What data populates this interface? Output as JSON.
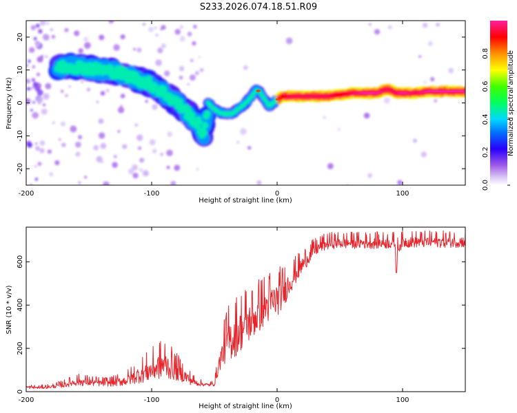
{
  "figure_title": "S233.2026.074.18.51.R09",
  "colors": {
    "snr_line": "#e8232a",
    "background": "#ffffff",
    "axis": "#000000"
  },
  "chart_data": [
    {
      "type": "heatmap",
      "title": "S233.2026.074.18.51.R09",
      "xlabel": "Height of straight line (km)",
      "ylabel": "Frequency (Hz)",
      "xlim": [
        -200,
        150
      ],
      "ylim": [
        -25,
        25
      ],
      "x_ticks": [
        -200,
        -100,
        0,
        100
      ],
      "y_ticks": [
        -20,
        -10,
        0,
        10,
        20
      ],
      "colorbar": {
        "label": "Normalized spectral amplitude",
        "range": [
          0,
          1
        ],
        "ticks": [
          "0.0",
          "0.2",
          "0.4",
          "0.6",
          "0.8"
        ],
        "colormap": [
          "#ffffff",
          "#c7a9f2",
          "#8a2be2",
          "#2200ff",
          "#00d0ff",
          "#00ff40",
          "#ffff00",
          "#ff8800",
          "#ff0000",
          "#ff2090"
        ]
      },
      "ridge": {
        "x": [
          -175,
          -160,
          -150,
          -140,
          -130,
          -120,
          -110,
          -100,
          -90,
          -80,
          -70,
          -62,
          -58,
          -55,
          -50,
          -45,
          -40,
          -35,
          -30,
          -25,
          -20,
          -17,
          -14,
          -10,
          -6,
          -2,
          0,
          5,
          10,
          20,
          30,
          40,
          50,
          60,
          70,
          80,
          85,
          90,
          95,
          100,
          110,
          120,
          130,
          140,
          150
        ],
        "freq": [
          11,
          11,
          10.5,
          10,
          9.5,
          8.5,
          7,
          5.5,
          3,
          0,
          -3.5,
          -7,
          -10,
          0,
          -2,
          -3,
          -3.5,
          -3,
          -1.5,
          0,
          2,
          4,
          3.5,
          1,
          -1,
          0.5,
          1,
          2,
          2,
          2,
          2,
          2,
          2.5,
          3,
          3,
          3,
          4,
          4,
          3,
          3,
          3,
          3.5,
          3.5,
          3.5,
          3.5
        ],
        "amplitude": [
          0.45,
          0.5,
          0.5,
          0.45,
          0.55,
          0.5,
          0.45,
          0.45,
          0.4,
          0.35,
          0.3,
          0.3,
          0.3,
          0.5,
          0.6,
          0.55,
          0.55,
          0.6,
          0.65,
          0.6,
          0.75,
          0.85,
          0.8,
          0.55,
          0.6,
          0.7,
          0.8,
          0.85,
          0.9,
          0.9,
          0.9,
          0.9,
          0.85,
          0.9,
          0.95,
          0.95,
          0.9,
          0.9,
          0.9,
          0.95,
          0.9,
          0.95,
          0.95,
          0.95,
          0.95
        ]
      }
    },
    {
      "type": "line",
      "title": "",
      "xlabel": "Height of straight line (km)",
      "ylabel": "SNR (10 * v/v)",
      "xlim": [
        -200,
        150
      ],
      "ylim": [
        0,
        760
      ],
      "x_ticks": [
        -200,
        -100,
        0,
        100
      ],
      "y_ticks": [
        0,
        200,
        400,
        600
      ],
      "series": [
        {
          "name": "SNR",
          "x": [
            -200,
            -190,
            -180,
            -170,
            -160,
            -150,
            -140,
            -130,
            -120,
            -110,
            -100,
            -95,
            -90,
            -85,
            -80,
            -75,
            -70,
            -65,
            -60,
            -55,
            -50,
            -45,
            -40,
            -35,
            -30,
            -25,
            -20,
            -15,
            -10,
            -5,
            0,
            5,
            10,
            15,
            20,
            25,
            30,
            35,
            40,
            45,
            50,
            60,
            70,
            80,
            90,
            94,
            95,
            96,
            100,
            110,
            120,
            130,
            140,
            150
          ],
          "mean": [
            20,
            18,
            22,
            30,
            45,
            42,
            38,
            40,
            50,
            75,
            95,
            110,
            120,
            105,
            90,
            75,
            55,
            40,
            35,
            30,
            35,
            150,
            220,
            240,
            270,
            300,
            320,
            350,
            380,
            400,
            420,
            450,
            500,
            540,
            580,
            620,
            650,
            670,
            680,
            685,
            685,
            685,
            685,
            685,
            685,
            685,
            560,
            660,
            690,
            690,
            690,
            690,
            690,
            690
          ],
          "amp": [
            15,
            12,
            15,
            25,
            40,
            35,
            30,
            35,
            50,
            80,
            110,
            120,
            140,
            110,
            90,
            70,
            50,
            30,
            20,
            15,
            20,
            100,
            180,
            200,
            200,
            200,
            180,
            180,
            170,
            170,
            160,
            140,
            110,
            90,
            80,
            70,
            60,
            55,
            55,
            55,
            55,
            55,
            55,
            55,
            55,
            55,
            0,
            55,
            55,
            55,
            55,
            55,
            55,
            55
          ]
        }
      ]
    }
  ]
}
